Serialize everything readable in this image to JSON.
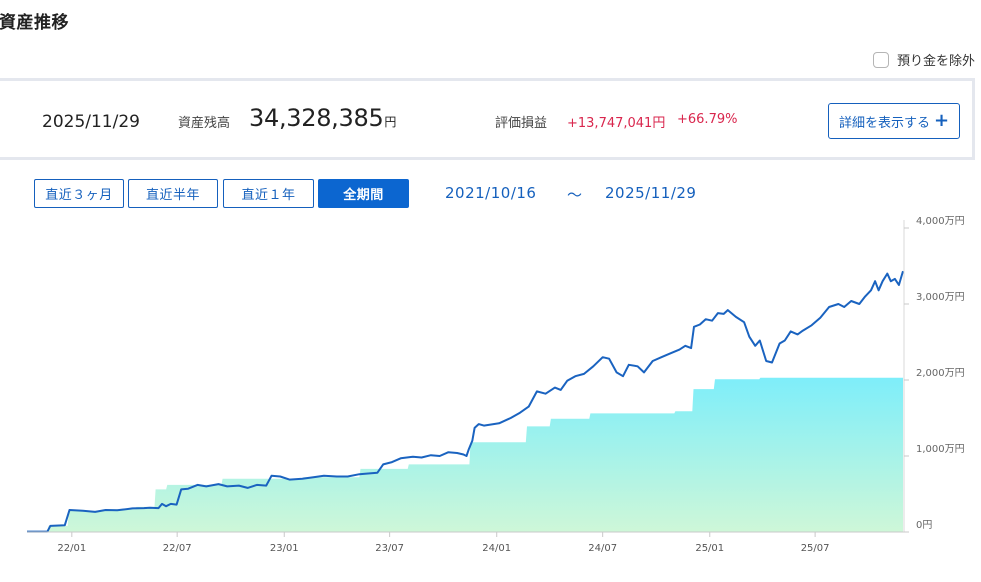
{
  "page": {
    "title": "資産推移",
    "hide_deposit_label": "預り金を除外",
    "hide_deposit_checked": false
  },
  "summary": {
    "date": "2025/11/29",
    "assets_label": "資産残高",
    "assets_value": "34,328,385",
    "assets_unit": "円",
    "pl_label": "評価損益",
    "pl_value": "+13,747,041円",
    "pl_percent": "+66.79%",
    "detail_button": "詳細を表示する"
  },
  "period_tabs": [
    {
      "label": "直近３ヶ月",
      "active": false
    },
    {
      "label": "直近半年",
      "active": false
    },
    {
      "label": "直近１年",
      "active": false
    },
    {
      "label": "全期間",
      "active": true
    }
  ],
  "range": {
    "start": "2021/10/16",
    "separator": "～",
    "end": "2025/11/29"
  },
  "colors": {
    "accent": "#1560bd",
    "gain": "#d9264d",
    "line": "#1a63c0",
    "area_top": "#7eeefa",
    "area_bottom": "#cef7d8"
  },
  "chart_data": {
    "type": "area",
    "unit": "万円",
    "ylim": [
      0,
      4000
    ],
    "y_ticks": [
      {
        "value": 0,
        "label": "0円"
      },
      {
        "value": 1000,
        "label": "1,000万円"
      },
      {
        "value": 2000,
        "label": "2,000万円"
      },
      {
        "value": 3000,
        "label": "3,000万円"
      },
      {
        "value": 4000,
        "label": "4,000万円"
      }
    ],
    "xlim": [
      "2021-10-16",
      "2025-11-29"
    ],
    "x_ticks": [
      {
        "date": "2022-01-01",
        "label": "22/01"
      },
      {
        "date": "2022-07-01",
        "label": "22/07"
      },
      {
        "date": "2023-01-01",
        "label": "23/01"
      },
      {
        "date": "2023-07-01",
        "label": "23/07"
      },
      {
        "date": "2024-01-01",
        "label": "24/01"
      },
      {
        "date": "2024-07-01",
        "label": "24/07"
      },
      {
        "date": "2025-01-01",
        "label": "25/01"
      },
      {
        "date": "2025-07-01",
        "label": "25/07"
      }
    ],
    "grid": false,
    "series": [
      {
        "kind": "area-step",
        "points": [
          [
            "2021-10-16",
            0
          ],
          [
            "2021-11-20",
            0
          ],
          [
            "2021-11-22",
            80
          ],
          [
            "2021-12-25",
            80
          ],
          [
            "2021-12-27",
            280
          ],
          [
            "2022-02-26",
            280
          ],
          [
            "2022-02-28",
            300
          ],
          [
            "2022-04-20",
            300
          ],
          [
            "2022-04-22",
            330
          ],
          [
            "2022-05-23",
            330
          ],
          [
            "2022-05-25",
            560
          ],
          [
            "2022-06-12",
            560
          ],
          [
            "2022-06-14",
            620
          ],
          [
            "2022-09-15",
            620
          ],
          [
            "2022-09-17",
            700
          ],
          [
            "2023-02-01",
            700
          ],
          [
            "2023-02-03",
            720
          ],
          [
            "2023-05-10",
            720
          ],
          [
            "2023-05-12",
            830
          ],
          [
            "2023-08-01",
            830
          ],
          [
            "2023-08-03",
            890
          ],
          [
            "2023-11-15",
            890
          ],
          [
            "2023-11-17",
            1180
          ],
          [
            "2024-02-20",
            1180
          ],
          [
            "2024-02-22",
            1390
          ],
          [
            "2024-04-01",
            1390
          ],
          [
            "2024-04-03",
            1490
          ],
          [
            "2024-06-08",
            1490
          ],
          [
            "2024-06-10",
            1560
          ],
          [
            "2024-11-01",
            1560
          ],
          [
            "2024-11-03",
            1590
          ],
          [
            "2024-12-02",
            1590
          ],
          [
            "2024-12-04",
            1880
          ],
          [
            "2025-01-08",
            1880
          ],
          [
            "2025-01-10",
            2010
          ],
          [
            "2025-03-27",
            2010
          ],
          [
            "2025-03-29",
            2030
          ],
          [
            "2025-11-29",
            2030
          ]
        ]
      },
      {
        "kind": "line",
        "points": [
          [
            "2021-10-16",
            5
          ],
          [
            "2021-11-20",
            5
          ],
          [
            "2021-11-25",
            80
          ],
          [
            "2021-12-20",
            90
          ],
          [
            "2021-12-28",
            290
          ],
          [
            "2022-01-20",
            280
          ],
          [
            "2022-02-10",
            265
          ],
          [
            "2022-02-28",
            290
          ],
          [
            "2022-03-20",
            285
          ],
          [
            "2022-04-15",
            310
          ],
          [
            "2022-05-05",
            315
          ],
          [
            "2022-05-15",
            320
          ],
          [
            "2022-05-30",
            315
          ],
          [
            "2022-06-05",
            370
          ],
          [
            "2022-06-12",
            340
          ],
          [
            "2022-06-20",
            370
          ],
          [
            "2022-06-30",
            360
          ],
          [
            "2022-07-08",
            560
          ],
          [
            "2022-07-20",
            570
          ],
          [
            "2022-08-05",
            620
          ],
          [
            "2022-08-20",
            600
          ],
          [
            "2022-09-10",
            630
          ],
          [
            "2022-09-25",
            600
          ],
          [
            "2022-10-15",
            610
          ],
          [
            "2022-10-30",
            580
          ],
          [
            "2022-11-15",
            620
          ],
          [
            "2022-12-01",
            610
          ],
          [
            "2022-12-10",
            740
          ],
          [
            "2022-12-25",
            730
          ],
          [
            "2023-01-10",
            690
          ],
          [
            "2023-02-01",
            700
          ],
          [
            "2023-02-20",
            720
          ],
          [
            "2023-03-10",
            740
          ],
          [
            "2023-04-01",
            730
          ],
          [
            "2023-04-20",
            730
          ],
          [
            "2023-05-10",
            760
          ],
          [
            "2023-05-25",
            770
          ],
          [
            "2023-06-10",
            780
          ],
          [
            "2023-06-20",
            890
          ],
          [
            "2023-07-05",
            920
          ],
          [
            "2023-07-20",
            970
          ],
          [
            "2023-08-10",
            990
          ],
          [
            "2023-08-25",
            980
          ],
          [
            "2023-09-10",
            1010
          ],
          [
            "2023-09-25",
            1000
          ],
          [
            "2023-10-10",
            1050
          ],
          [
            "2023-10-25",
            1040
          ],
          [
            "2023-11-05",
            1020
          ],
          [
            "2023-11-10",
            1000
          ],
          [
            "2023-11-14",
            1090
          ],
          [
            "2023-11-20",
            1200
          ],
          [
            "2023-11-24",
            1370
          ],
          [
            "2023-12-01",
            1420
          ],
          [
            "2023-12-10",
            1400
          ],
          [
            "2024-01-05",
            1430
          ],
          [
            "2024-01-25",
            1500
          ],
          [
            "2024-02-10",
            1570
          ],
          [
            "2024-02-25",
            1650
          ],
          [
            "2024-03-10",
            1850
          ],
          [
            "2024-03-25",
            1820
          ],
          [
            "2024-04-10",
            1900
          ],
          [
            "2024-04-20",
            1870
          ],
          [
            "2024-05-01",
            1990
          ],
          [
            "2024-05-15",
            2050
          ],
          [
            "2024-05-30",
            2080
          ],
          [
            "2024-06-15",
            2180
          ],
          [
            "2024-07-01",
            2300
          ],
          [
            "2024-07-12",
            2280
          ],
          [
            "2024-07-25",
            2100
          ],
          [
            "2024-08-05",
            2050
          ],
          [
            "2024-08-15",
            2200
          ],
          [
            "2024-08-30",
            2180
          ],
          [
            "2024-09-10",
            2100
          ],
          [
            "2024-09-25",
            2250
          ],
          [
            "2024-10-10",
            2300
          ],
          [
            "2024-10-25",
            2350
          ],
          [
            "2024-11-10",
            2400
          ],
          [
            "2024-11-20",
            2450
          ],
          [
            "2024-11-30",
            2420
          ],
          [
            "2024-12-05",
            2700
          ],
          [
            "2024-12-15",
            2730
          ],
          [
            "2024-12-25",
            2800
          ],
          [
            "2025-01-05",
            2780
          ],
          [
            "2025-01-15",
            2880
          ],
          [
            "2025-01-25",
            2870
          ],
          [
            "2025-02-01",
            2920
          ],
          [
            "2025-02-15",
            2830
          ],
          [
            "2025-03-01",
            2760
          ],
          [
            "2025-03-10",
            2570
          ],
          [
            "2025-03-20",
            2450
          ],
          [
            "2025-03-28",
            2520
          ],
          [
            "2025-04-08",
            2250
          ],
          [
            "2025-04-18",
            2230
          ],
          [
            "2025-05-01",
            2480
          ],
          [
            "2025-05-10",
            2520
          ],
          [
            "2025-05-20",
            2640
          ],
          [
            "2025-06-01",
            2600
          ],
          [
            "2025-06-10",
            2650
          ],
          [
            "2025-06-25",
            2720
          ],
          [
            "2025-07-10",
            2820
          ],
          [
            "2025-07-25",
            2960
          ],
          [
            "2025-08-10",
            3000
          ],
          [
            "2025-08-20",
            2960
          ],
          [
            "2025-09-01",
            3040
          ],
          [
            "2025-09-15",
            3000
          ],
          [
            "2025-09-25",
            3100
          ],
          [
            "2025-10-05",
            3180
          ],
          [
            "2025-10-12",
            3300
          ],
          [
            "2025-10-18",
            3180
          ],
          [
            "2025-10-25",
            3300
          ],
          [
            "2025-11-02",
            3400
          ],
          [
            "2025-11-08",
            3300
          ],
          [
            "2025-11-15",
            3330
          ],
          [
            "2025-11-22",
            3250
          ],
          [
            "2025-11-29",
            3433
          ]
        ]
      }
    ]
  }
}
